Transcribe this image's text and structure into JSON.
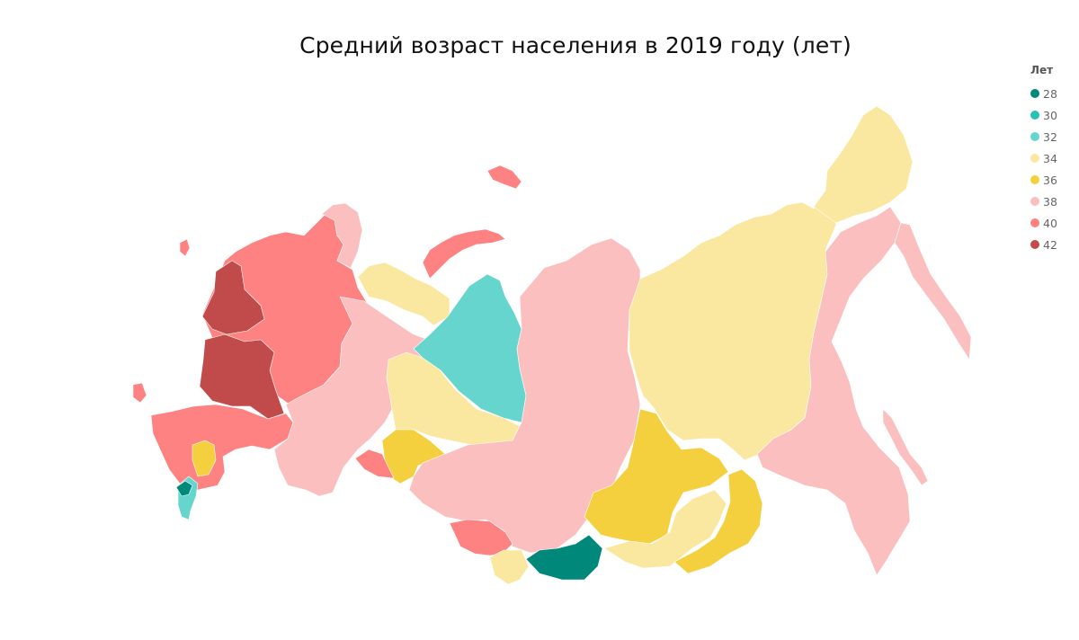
{
  "title": "Средний возраст населения в 2019 году (лет)",
  "legend": {
    "title": "Лет",
    "items": [
      {
        "label": "28",
        "color": "#00897b"
      },
      {
        "label": "30",
        "color": "#26c2b5"
      },
      {
        "label": "32",
        "color": "#65d5cd"
      },
      {
        "label": "34",
        "color": "#fbe8a0"
      },
      {
        "label": "36",
        "color": "#f4d03f"
      },
      {
        "label": "38",
        "color": "#fbbfbf"
      },
      {
        "label": "40",
        "color": "#fe8281"
      },
      {
        "label": "42",
        "color": "#c14b4b"
      }
    ]
  },
  "regions": [
    {
      "region": "north-west",
      "class": "40"
    },
    {
      "region": "central-core",
      "class": "42"
    },
    {
      "region": "north-west-core",
      "class": "42"
    },
    {
      "region": "south",
      "class": "40"
    },
    {
      "region": "kola",
      "class": "38"
    },
    {
      "region": "volga-ural",
      "class": "38"
    },
    {
      "region": "nenets-komi-north",
      "class": "34"
    },
    {
      "region": "khanty-mansi",
      "class": "34"
    },
    {
      "region": "yamalo-nenets",
      "class": "32"
    },
    {
      "region": "tyumen-kurgan",
      "class": "36"
    },
    {
      "region": "orenburg",
      "class": "40"
    },
    {
      "region": "krasnoyarsk-siberia",
      "class": "38"
    },
    {
      "region": "altai",
      "class": "40"
    },
    {
      "region": "altai-republic",
      "class": "34"
    },
    {
      "region": "tyva",
      "class": "28"
    },
    {
      "region": "irkutsk",
      "class": "36"
    },
    {
      "region": "buryatia",
      "class": "34"
    },
    {
      "region": "zabaykalsky",
      "class": "36"
    },
    {
      "region": "yakutia",
      "class": "34"
    },
    {
      "region": "far-east",
      "class": "38"
    },
    {
      "region": "kamchatka",
      "class": "38"
    },
    {
      "region": "chukotka",
      "class": "34"
    },
    {
      "region": "sakhalin",
      "class": "38"
    },
    {
      "region": "novaya-zemlya",
      "class": "40"
    },
    {
      "region": "franz-josef",
      "class": "40"
    },
    {
      "region": "dagestan",
      "class": "32"
    },
    {
      "region": "chechnya",
      "class": "28"
    },
    {
      "region": "kalmykia",
      "class": "36"
    },
    {
      "region": "crimea",
      "class": "40"
    },
    {
      "region": "kaliningrad",
      "class": "40"
    }
  ]
}
